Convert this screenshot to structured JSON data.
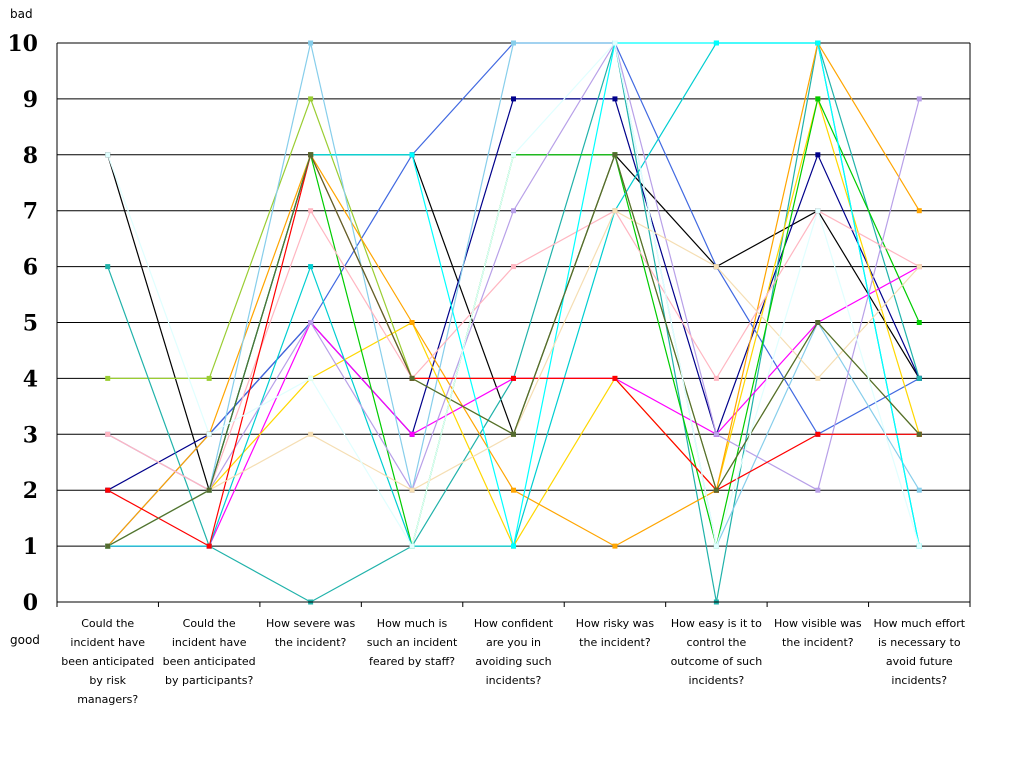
{
  "chart_data": {
    "type": "line",
    "ylabel_top": "bad",
    "ylabel_bottom": "good",
    "ylim": [
      0,
      10
    ],
    "yticks": [
      0,
      1,
      2,
      3,
      4,
      5,
      6,
      7,
      8,
      9,
      10
    ],
    "grid": true,
    "legend": "none",
    "categories": [
      [
        "Could the",
        "incident have",
        "been anticipated",
        "by risk",
        "managers?"
      ],
      [
        "Could the",
        "incident have",
        "been anticipated",
        "by participants?"
      ],
      [
        "How severe was",
        "the incident?"
      ],
      [
        "How much is",
        "such an incident",
        "feared by staff?"
      ],
      [
        "How confident",
        "are you in",
        "avoiding such",
        "incidents?"
      ],
      [
        "How risky was",
        "the incident?"
      ],
      [
        "How easy is it to",
        "control the",
        "outcome of such",
        "incidents?"
      ],
      [
        "How visible was",
        "the incident?"
      ],
      [
        "How much effort",
        "is necessary to",
        "avoid future",
        "incidents?"
      ]
    ],
    "series": [
      {
        "color": "#000000",
        "values": [
          8,
          2,
          8,
          8,
          3,
          8,
          6,
          7,
          4
        ]
      },
      {
        "color": "#9acd32",
        "values": [
          4,
          4,
          9,
          4,
          3,
          8,
          2,
          5,
          3
        ]
      },
      {
        "color": "#00008b",
        "values": [
          2,
          3,
          5,
          3,
          9,
          9,
          3,
          8,
          4
        ]
      },
      {
        "color": "#4169e1",
        "values": [
          1,
          3,
          5,
          8,
          10,
          10,
          6,
          3,
          4
        ]
      },
      {
        "color": "#20b2aa",
        "values": [
          6,
          1,
          0,
          1,
          4,
          10,
          0,
          10,
          4
        ]
      },
      {
        "color": "#ff00ff",
        "values": [
          1,
          1,
          5,
          3,
          4,
          4,
          3,
          5,
          6
        ]
      },
      {
        "color": "#ffd700",
        "values": [
          1,
          2,
          4,
          5,
          1,
          4,
          2,
          9,
          3
        ]
      },
      {
        "color": "#ffa500",
        "values": [
          1,
          3,
          8,
          5,
          2,
          1,
          2,
          10,
          7
        ]
      },
      {
        "color": "#00cc00",
        "values": [
          1,
          2,
          8,
          1,
          8,
          8,
          1,
          9,
          5
        ]
      },
      {
        "color": "#00ced1",
        "values": [
          1,
          1,
          6,
          1,
          1,
          7,
          10,
          10,
          1
        ]
      },
      {
        "color": "#87ceeb",
        "values": [
          3,
          2,
          10,
          2,
          10,
          10,
          1,
          5,
          2
        ]
      },
      {
        "color": "#b8a0e8",
        "values": [
          3,
          2,
          5,
          2,
          7,
          10,
          3,
          2,
          9
        ]
      },
      {
        "color": "#ffb6c1",
        "values": [
          3,
          2,
          7,
          4,
          6,
          7,
          4,
          7,
          6
        ]
      },
      {
        "color": "#00ffff",
        "values": [
          1,
          2,
          8,
          8,
          1,
          10,
          10,
          10,
          1
        ]
      },
      {
        "color": "#ff0000",
        "values": [
          2,
          1,
          8,
          4,
          4,
          4,
          2,
          3,
          3
        ]
      },
      {
        "color": "#f5deb3",
        "values": [
          1,
          2,
          3,
          2,
          3,
          7,
          6,
          4,
          6
        ]
      },
      {
        "color": "#556b2f",
        "values": [
          1,
          2,
          8,
          4,
          3,
          8,
          2,
          5,
          3
        ]
      },
      {
        "color": "#e0ffff",
        "values": [
          8,
          3,
          4,
          1,
          8,
          10,
          1,
          7,
          1
        ]
      }
    ]
  }
}
